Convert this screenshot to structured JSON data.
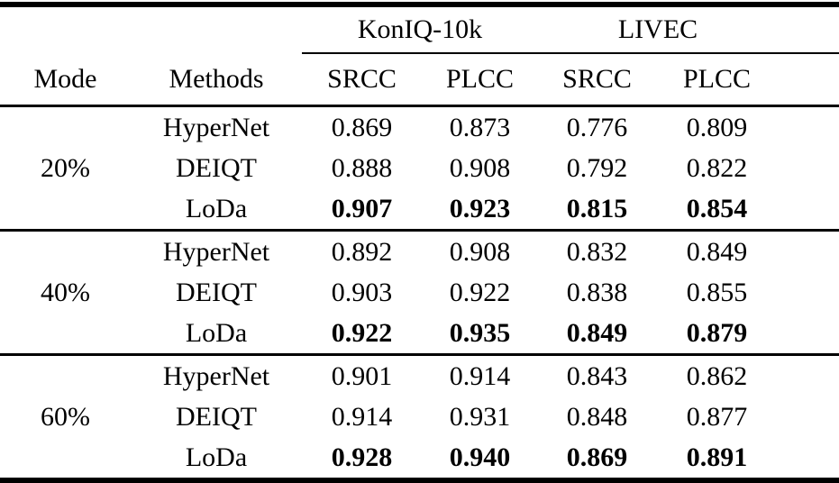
{
  "page": {
    "background_color": "#ffffff",
    "text_color": "#000000",
    "rule_color": "#000000"
  },
  "table": {
    "dataset_headers": [
      "KonIQ-10k",
      "LIVEC"
    ],
    "column_headers": [
      "Mode",
      "Methods",
      "SRCC",
      "PLCC",
      "SRCC",
      "PLCC"
    ],
    "groups": [
      {
        "mode": "20%",
        "rows": [
          {
            "method": "HyperNet",
            "values": [
              "0.869",
              "0.873",
              "0.776",
              "0.809"
            ],
            "bold": false
          },
          {
            "method": "DEIQT",
            "values": [
              "0.888",
              "0.908",
              "0.792",
              "0.822"
            ],
            "bold": false
          },
          {
            "method": "LoDa",
            "values": [
              "0.907",
              "0.923",
              "0.815",
              "0.854"
            ],
            "bold": true
          }
        ]
      },
      {
        "mode": "40%",
        "rows": [
          {
            "method": "HyperNet",
            "values": [
              "0.892",
              "0.908",
              "0.832",
              "0.849"
            ],
            "bold": false
          },
          {
            "method": "DEIQT",
            "values": [
              "0.903",
              "0.922",
              "0.838",
              "0.855"
            ],
            "bold": false
          },
          {
            "method": "LoDa",
            "values": [
              "0.922",
              "0.935",
              "0.849",
              "0.879"
            ],
            "bold": true
          }
        ]
      },
      {
        "mode": "60%",
        "rows": [
          {
            "method": "HyperNet",
            "values": [
              "0.901",
              "0.914",
              "0.843",
              "0.862"
            ],
            "bold": false
          },
          {
            "method": "DEIQT",
            "values": [
              "0.914",
              "0.931",
              "0.848",
              "0.877"
            ],
            "bold": false
          },
          {
            "method": "LoDa",
            "values": [
              "0.928",
              "0.940",
              "0.869",
              "0.891"
            ],
            "bold": true
          }
        ]
      }
    ]
  }
}
